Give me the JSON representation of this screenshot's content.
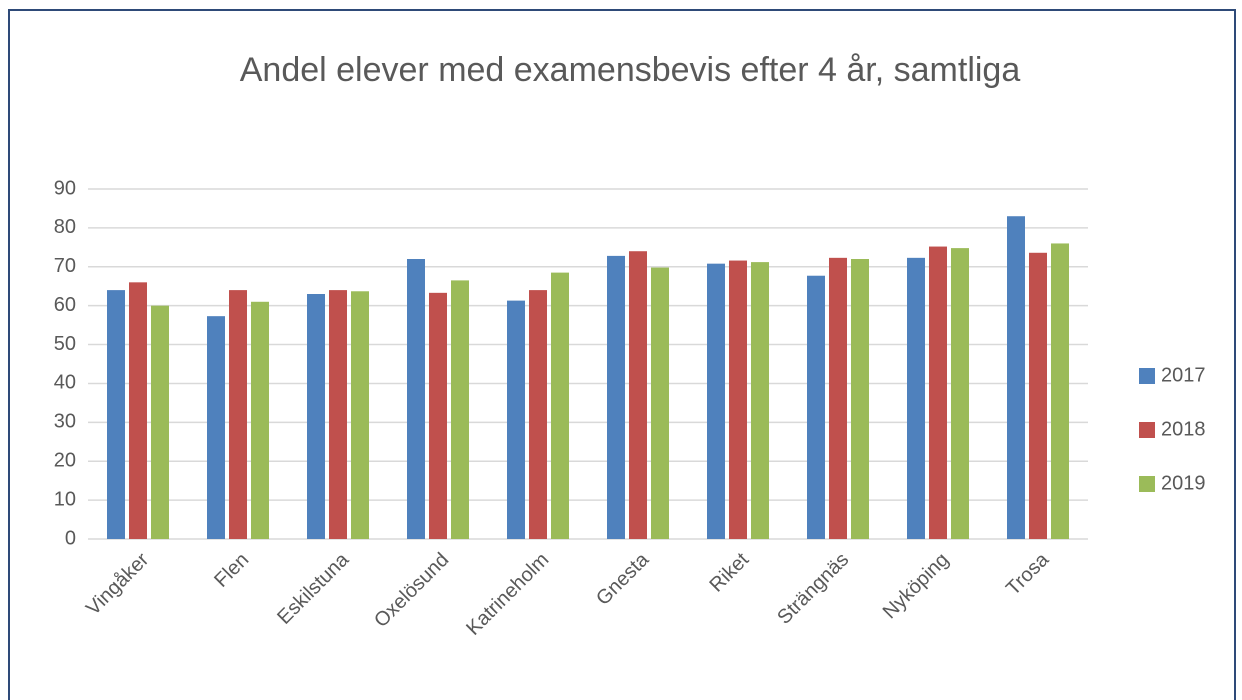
{
  "chart_data": {
    "type": "bar",
    "title": "Andel elever med examensbevis efter 4 år, samtliga",
    "categories": [
      "Vingåker",
      "Flen",
      "Eskilstuna",
      "Oxelösund",
      "Katrineholm",
      "Gnesta",
      "Riket",
      "Strängnäs",
      "Nyköping",
      "Trosa"
    ],
    "series": [
      {
        "name": "2017",
        "color": "#4f81bd",
        "values": [
          64,
          57.3,
          63,
          72,
          61.3,
          72.8,
          70.8,
          67.7,
          72.3,
          83
        ]
      },
      {
        "name": "2018",
        "color": "#c0504d",
        "values": [
          66,
          64,
          64,
          63.3,
          64,
          74,
          71.6,
          72.3,
          75.2,
          73.6
        ]
      },
      {
        "name": "2019",
        "color": "#9bbb59",
        "values": [
          60,
          61,
          63.7,
          66.5,
          68.5,
          69.8,
          71.2,
          72,
          74.8,
          76
        ]
      }
    ],
    "ylim": [
      0,
      90
    ],
    "yticks": [
      0,
      10,
      20,
      30,
      40,
      50,
      60,
      70,
      80,
      90
    ],
    "grid": true,
    "legend": "right"
  }
}
